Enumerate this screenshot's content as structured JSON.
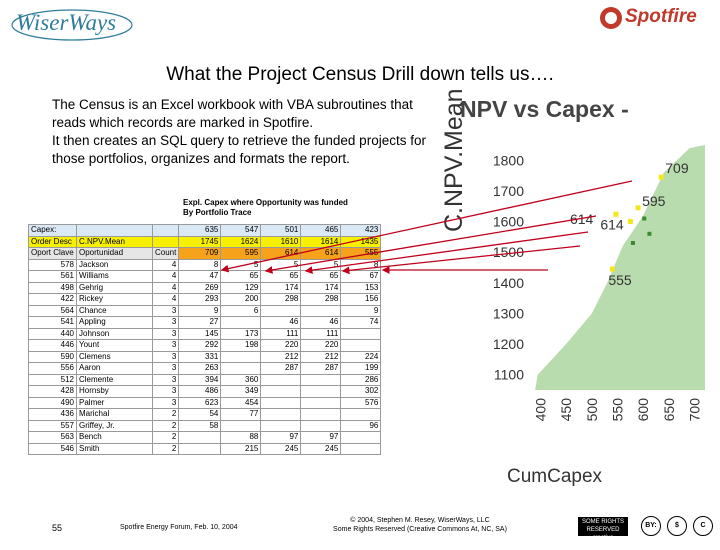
{
  "header": {
    "wiser_logo_text": "WiserWays",
    "spotfire_logo_text": "Spotfire"
  },
  "title": "What the Project Census Drill down tells us….",
  "body": {
    "paragraph1": "The Census is an Excel workbook with VBA subroutines that reads which records are marked in Spotfire.",
    "paragraph2": "It then creates an SQL query to retrieve the funded projects for those portfolios, organizes and formats the report."
  },
  "chart": {
    "title": "NPV vs Capex -",
    "ylabel": "C.NPV.Mean",
    "xlabel": "CumCapex",
    "y_ticks": [
      "1800",
      "1700",
      "1600",
      "1500",
      "1400",
      "1300",
      "1200",
      "1100"
    ],
    "x_ticks": [
      "400",
      "450",
      "500",
      "550",
      "600",
      "650",
      "700"
    ],
    "point_labels": [
      "709",
      "614",
      "595",
      "614",
      "555"
    ],
    "colors": {
      "cloud": "#b9dcae",
      "highlight": "#f3e81a",
      "arrow": "#c0001b"
    }
  },
  "chart_data": {
    "type": "scatter",
    "title": "NPV vs Capex -",
    "xlabel": "CumCapex",
    "ylabel": "C.NPV.Mean",
    "xlim": [
      380,
      720
    ],
    "ylim": [
      1050,
      1850
    ],
    "x_ticks": [
      400,
      450,
      500,
      550,
      600,
      650,
      700
    ],
    "y_ticks": [
      1100,
      1200,
      1300,
      1400,
      1500,
      1600,
      1700,
      1800
    ],
    "labeled_points": [
      {
        "label": "709",
        "x": 635,
        "y": 1745
      },
      {
        "label": "614",
        "x": 547,
        "y": 1624
      },
      {
        "label": "595",
        "x": 590,
        "y": 1645
      },
      {
        "label": "614",
        "x": 575,
        "y": 1600
      },
      {
        "label": "555",
        "x": 540,
        "y": 1445
      }
    ]
  },
  "table": {
    "title_line1": "Expl. Capex where Opportunity was funded",
    "title_line2": "By Portfolio Trace",
    "capex_label": "Capex:",
    "capex_values": [
      "635",
      "547",
      "501",
      "465",
      "423"
    ],
    "order_label": "Order Desc",
    "order_mid": "C.NPV.Mean",
    "order_values": [
      "1745",
      "1624",
      "1610",
      "1614",
      "1435"
    ],
    "head_col1": "Oport Clave",
    "head_col2": "Oportunidad",
    "head_col3": "Count",
    "head_values": [
      "709",
      "595",
      "614",
      "614",
      "555"
    ],
    "rows": [
      [
        "578",
        "Jackson",
        "4",
        "8",
        "5",
        "5",
        "5",
        "8"
      ],
      [
        "561",
        "Williams",
        "4",
        "47",
        "65",
        "65",
        "65",
        "67"
      ],
      [
        "498",
        "Gehrig",
        "4",
        "269",
        "129",
        "174",
        "174",
        "153"
      ],
      [
        "422",
        "Rickey",
        "4",
        "293",
        "200",
        "298",
        "298",
        "156"
      ],
      [
        "564",
        "Chance",
        "3",
        "9",
        "6",
        "",
        "",
        "9"
      ],
      [
        "541",
        "Appling",
        "3",
        "27",
        "",
        "46",
        "46",
        "74"
      ],
      [
        "440",
        "Johnson",
        "3",
        "145",
        "173",
        "111",
        "111",
        ""
      ],
      [
        "446",
        "Yount",
        "3",
        "292",
        "198",
        "220",
        "220",
        ""
      ],
      [
        "590",
        "Clemens",
        "3",
        "331",
        "",
        "212",
        "212",
        "224"
      ],
      [
        "556",
        "Aaron",
        "3",
        "263",
        "",
        "287",
        "287",
        "199"
      ],
      [
        "512",
        "Clemente",
        "3",
        "394",
        "360",
        "",
        "",
        "286"
      ],
      [
        "428",
        "Hornsby",
        "3",
        "486",
        "349",
        "",
        "",
        "302"
      ],
      [
        "490",
        "Palmer",
        "3",
        "623",
        "454",
        "",
        "",
        "576"
      ],
      [
        "436",
        "Marichal",
        "2",
        "54",
        "77",
        "",
        "",
        ""
      ],
      [
        "557",
        "Griffey, Jr.",
        "2",
        "58",
        "",
        "",
        "",
        "96"
      ],
      [
        "563",
        "Bench",
        "2",
        "",
        "88",
        "97",
        "97",
        ""
      ],
      [
        "546",
        "Smith",
        "2",
        "",
        "215",
        "245",
        "245",
        ""
      ]
    ]
  },
  "footer": {
    "page_number": "55",
    "forum": "Spotfire Energy Forum, Feb. 10, 2004",
    "copyright_line1": "© 2004, Stephen M. Resey, WiserWays, LLC",
    "copyright_line2": "Some Rights Reserved (Creative Commons At, NC, SA)",
    "cc_badge": "SOME RIGHTS RESERVED creative commons",
    "cc_icon_by": "BY:",
    "cc_icon_nc": "$",
    "cc_icon_sa": "C"
  }
}
